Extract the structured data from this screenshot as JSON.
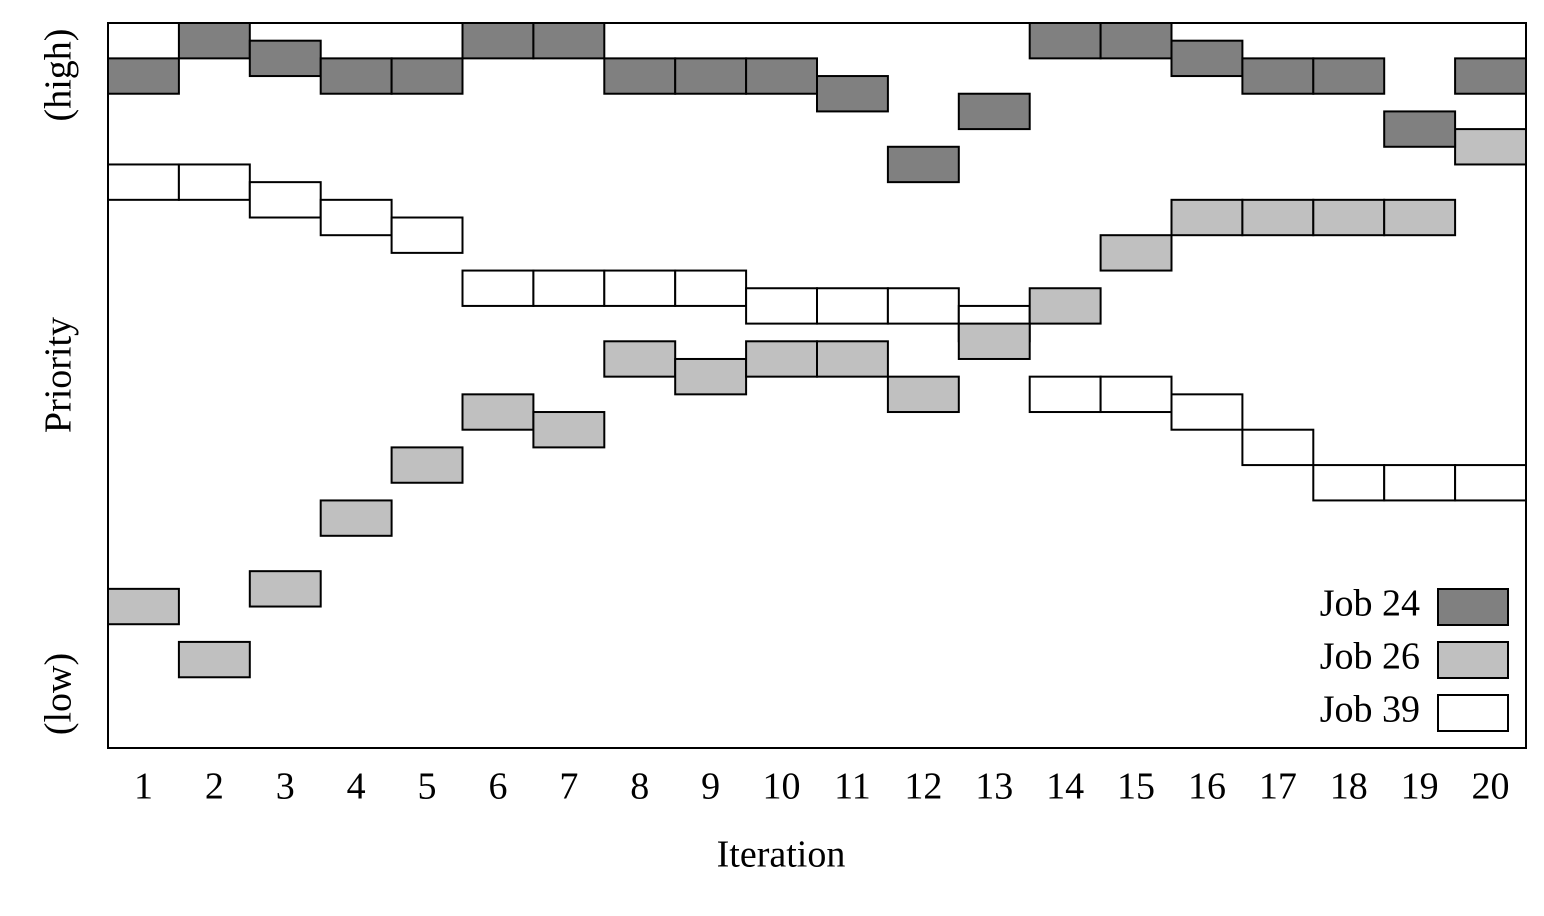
{
  "chart_data": {
    "type": "rank-blocks",
    "x_label": "Iteration",
    "y_label": "Priority",
    "y_top_label": "(high)",
    "y_bottom_label": "(low)",
    "categories": [
      1,
      2,
      3,
      4,
      5,
      6,
      7,
      8,
      9,
      10,
      11,
      12,
      13,
      14,
      15,
      16,
      17,
      18,
      19,
      20
    ],
    "ylim": [
      0,
      20.5
    ],
    "legend": "lower right",
    "series": [
      {
        "name": "Job 24",
        "color": "#808080",
        "values": [
          18.5,
          19.5,
          19,
          18.5,
          18.5,
          19.5,
          19.5,
          18.5,
          18.5,
          18.5,
          18,
          16,
          17.5,
          19.5,
          19.5,
          19,
          18.5,
          18.5,
          17,
          18.5
        ]
      },
      {
        "name": "Job 26",
        "color": "#c0c0c0",
        "values": [
          3.5,
          2,
          4,
          6,
          7.5,
          9,
          8.5,
          10.5,
          10,
          10.5,
          10.5,
          9.5,
          11,
          12,
          13.5,
          14.5,
          14.5,
          14.5,
          14.5,
          16.5
        ]
      },
      {
        "name": "Job 39",
        "color": "#ffffff",
        "values": [
          15.5,
          15.5,
          15,
          14.5,
          14,
          12.5,
          12.5,
          12.5,
          12.5,
          12,
          12,
          12,
          11.5,
          9.5,
          9.5,
          9,
          8,
          7,
          7,
          7
        ]
      }
    ]
  }
}
